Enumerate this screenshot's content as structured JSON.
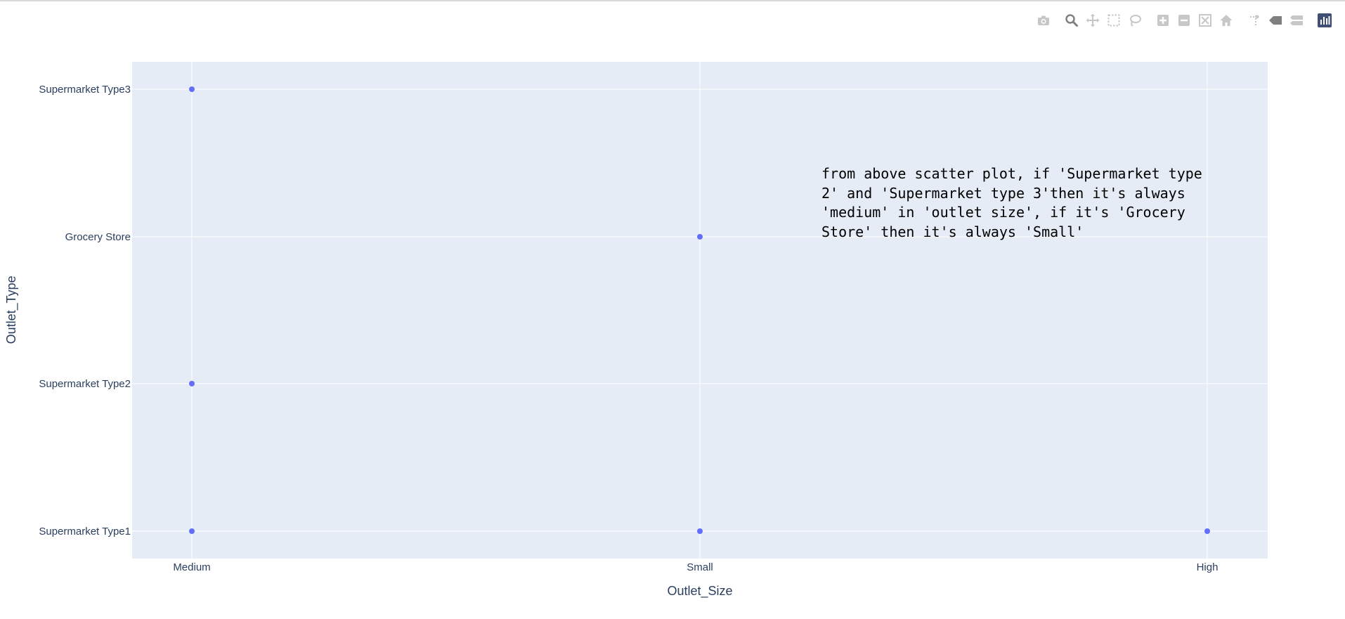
{
  "colors": {
    "plot_bg": "#e5ecf6",
    "grid": "#ffffff",
    "marker": "#636efa",
    "axis_text": "#2a3f5f",
    "modebar_icon": "#c7c7c7",
    "modebar_active": "#7f7f7f",
    "plotly_logo_bg": "#3f4f75"
  },
  "modebar": {
    "buttons": [
      {
        "icon": "camera-icon"
      },
      {
        "icon": "zoom-icon"
      },
      {
        "icon": "pan-icon"
      },
      {
        "icon": "box-select-icon"
      },
      {
        "icon": "lasso-select-icon"
      },
      {
        "icon": "zoom-in-icon"
      },
      {
        "icon": "zoom-out-icon"
      },
      {
        "icon": "autoscale-icon"
      },
      {
        "icon": "reset-axes-icon"
      },
      {
        "icon": "spike-lines-icon"
      },
      {
        "icon": "hover-closest-icon"
      },
      {
        "icon": "hover-compare-icon"
      },
      {
        "icon": "plotly-logo-icon"
      }
    ]
  },
  "chart_data": {
    "type": "scatter",
    "xlabel": "Outlet_Size",
    "ylabel": "Outlet_Type",
    "x_categories": [
      "Medium",
      "Small",
      "High"
    ],
    "y_categories": [
      "Supermarket Type1",
      "Supermarket Type2",
      "Grocery Store",
      "Supermarket Type3"
    ],
    "points": [
      {
        "x": "Medium",
        "y": "Supermarket Type3"
      },
      {
        "x": "Small",
        "y": "Grocery Store"
      },
      {
        "x": "Medium",
        "y": "Supermarket Type2"
      },
      {
        "x": "Medium",
        "y": "Supermarket Type1"
      },
      {
        "x": "Small",
        "y": "Supermarket Type1"
      },
      {
        "x": "High",
        "y": "Supermarket Type1"
      }
    ],
    "grid": true,
    "legend": "none"
  },
  "note": {
    "text": "from above scatter plot, if 'Supermarket type 2' and 'Supermarket type 3'then it's always 'medium' in 'outlet size', if it's 'Grocery Store' then it's always 'Small'"
  }
}
